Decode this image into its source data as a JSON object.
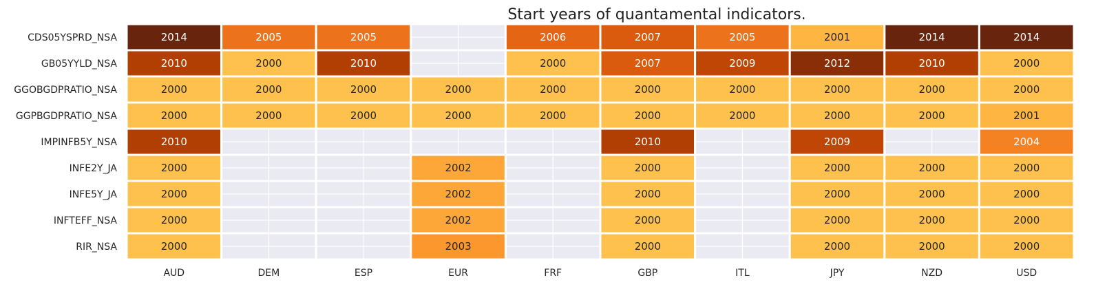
{
  "chart_data": {
    "type": "heatmap",
    "title": "Start years of quantamental indicators.",
    "xlabel": "",
    "ylabel": "",
    "x_categories": [
      "AUD",
      "DEM",
      "ESP",
      "EUR",
      "FRF",
      "GBP",
      "ITL",
      "JPY",
      "NZD",
      "USD"
    ],
    "y_categories": [
      "CDS05YSPRD_NSA",
      "GB05YYLD_NSA",
      "GGOBGDPRATIO_NSA",
      "GGPBGDPRATIO_NSA",
      "IMPINFB5Y_NSA",
      "INFE2Y_JA",
      "INFE5Y_JA",
      "INFTEFF_NSA",
      "RIR_NSA"
    ],
    "values": [
      [
        2014,
        2005,
        2005,
        null,
        2006,
        2007,
        2005,
        2001,
        2014,
        2014
      ],
      [
        2010,
        2000,
        2010,
        null,
        2000,
        2007,
        2009,
        2012,
        2010,
        2000
      ],
      [
        2000,
        2000,
        2000,
        2000,
        2000,
        2000,
        2000,
        2000,
        2000,
        2000
      ],
      [
        2000,
        2000,
        2000,
        2000,
        2000,
        2000,
        2000,
        2000,
        2000,
        2001
      ],
      [
        2010,
        null,
        null,
        null,
        null,
        2010,
        null,
        2009,
        null,
        2004
      ],
      [
        2000,
        null,
        null,
        2002,
        null,
        2000,
        null,
        2000,
        2000,
        2000
      ],
      [
        2000,
        null,
        null,
        2002,
        null,
        2000,
        null,
        2000,
        2000,
        2000
      ],
      [
        2000,
        null,
        null,
        2002,
        null,
        2000,
        null,
        2000,
        2000,
        2000
      ],
      [
        2000,
        null,
        null,
        2003,
        null,
        2000,
        null,
        2000,
        2000,
        2000
      ]
    ],
    "colormap": "YlOrBr",
    "missing_color": "#eaeaf2",
    "grid": true,
    "legend": "none"
  }
}
